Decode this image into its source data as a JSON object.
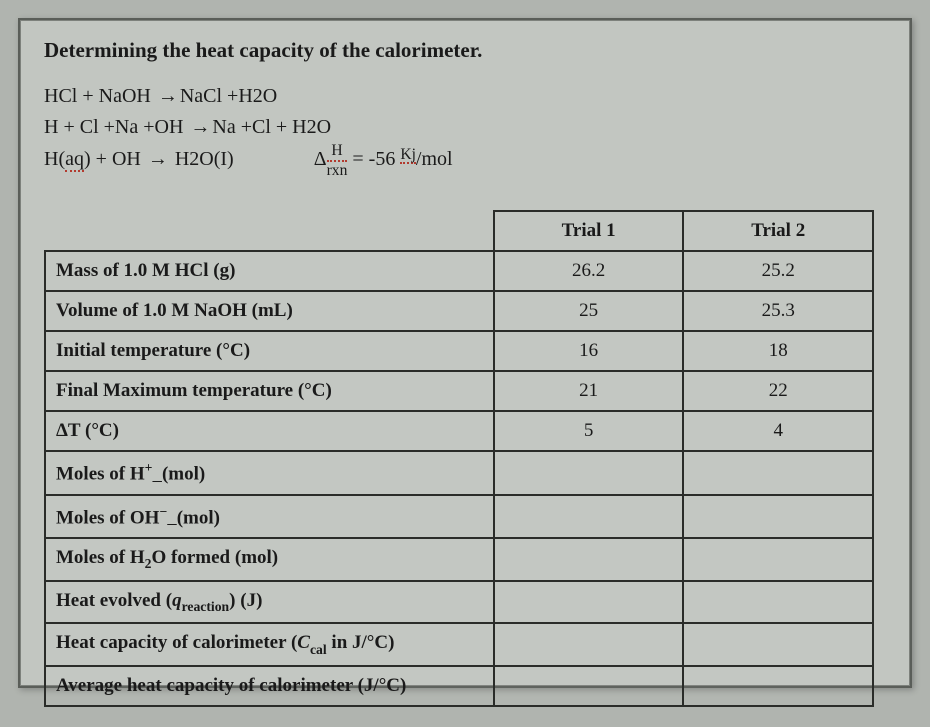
{
  "title": "Determining the heat capacity of the calorimeter.",
  "equations": {
    "line1_left": "HCl + NaOH",
    "line1_right": "NaCl +H2O",
    "line2_left": "H + Cl +Na +OH",
    "line2_right": "Na +Cl + H2O",
    "line3_left_h": "H(",
    "line3_left_aq": "aq",
    "line3_left_close": ") + OH",
    "line3_right": "H2O(I)",
    "dh_label_delta": "Δ",
    "dh_label_h": "H",
    "dh_label_sub": "rxn",
    "dh_eq": "= -56",
    "dh_unit_top": "Kj",
    "dh_unit_bot": "/mol"
  },
  "headers": {
    "trial1": "Trial 1",
    "trial2": "Trial 2"
  },
  "rows": [
    {
      "label": "Mass of 1.0 M HCl (g)",
      "t1": "26.2",
      "t2": "25.2",
      "html": false
    },
    {
      "label": "Volume of 1.0 M NaOH (mL)",
      "t1": "25",
      "t2": "25.3",
      "html": false
    },
    {
      "label": "Initial temperature (°C)",
      "t1": "16",
      "t2": "18",
      "html": false
    },
    {
      "label": "Final Maximum temperature (°C)",
      "t1": "21",
      "t2": "22",
      "html": false
    },
    {
      "label": "ΔT (°C)",
      "t1": "5",
      "t2": "4",
      "html": false
    }
  ],
  "rows_empty": [
    "Moles of H<span class='sup'>+</span><span class='underline'>  </span>(mol)",
    "Moles of OH<span class='sup'>−</span><span class='underline'>  </span>(mol)",
    "Moles of H<span class='sub'>2</span>O formed (mol)",
    "Heat evolved (<span class='ital'>q</span><span class='sub'>reaction</span>) (J)",
    "Heat capacity of calorimeter (<span class='ital'>C</span><span class='sub'>cal</span> in J/°C)",
    "Average heat capacity of calorimeter (J/°C)"
  ],
  "colors": {
    "page_bg": "#c2c6c1",
    "outer_bg": "#b0b4af",
    "text": "#1a1a1a",
    "border": "#2a2c29",
    "red_dotted": "#b23a2e"
  },
  "typography": {
    "title_size": 21,
    "body_size": 20,
    "table_size": 19,
    "family": "Times New Roman"
  }
}
